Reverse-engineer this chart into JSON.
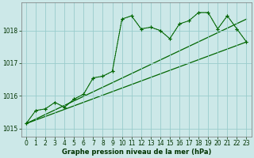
{
  "background_color": "#cce8e8",
  "grid_color": "#99cccc",
  "line_color": "#006600",
  "marker_color": "#006600",
  "text_color": "#003300",
  "xlabel": "Graphe pression niveau de la mer (hPa)",
  "xlim": [
    -0.5,
    23.5
  ],
  "ylim": [
    1014.75,
    1018.85
  ],
  "yticks": [
    1015,
    1016,
    1017,
    1018
  ],
  "xticks": [
    0,
    1,
    2,
    3,
    4,
    5,
    6,
    7,
    8,
    9,
    10,
    11,
    12,
    13,
    14,
    15,
    16,
    17,
    18,
    19,
    20,
    21,
    22,
    23
  ],
  "series_dotted": {
    "x": [
      0,
      1,
      2,
      3,
      4,
      5,
      6,
      7,
      8,
      9,
      10,
      11,
      12,
      13,
      14,
      15,
      16,
      17,
      18,
      19,
      20,
      21,
      22,
      23
    ],
    "y": [
      1015.15,
      1015.55,
      1015.6,
      1015.8,
      1015.65,
      1015.9,
      1016.05,
      1016.55,
      1016.6,
      1016.75,
      1018.35,
      1018.45,
      1018.05,
      1018.1,
      1018.0,
      1017.75,
      1018.2,
      1018.3,
      1018.55,
      1018.55,
      1018.05,
      1018.45,
      1018.05,
      1017.65
    ]
  },
  "series_solid": {
    "x": [
      0,
      1,
      2,
      3,
      4,
      5,
      6,
      7,
      8,
      9,
      10,
      11,
      12,
      13,
      14,
      15,
      16,
      17,
      18,
      19,
      20,
      21,
      22,
      23
    ],
    "y": [
      1015.15,
      1015.55,
      1015.6,
      1015.8,
      1015.65,
      1015.9,
      1016.05,
      1016.55,
      1016.6,
      1016.75,
      1018.35,
      1018.45,
      1018.05,
      1018.1,
      1018.0,
      1017.75,
      1018.2,
      1018.3,
      1018.55,
      1018.55,
      1018.05,
      1018.45,
      1018.05,
      1017.65
    ]
  },
  "trend_line": {
    "x": [
      0,
      23
    ],
    "y": [
      1015.15,
      1017.65
    ]
  },
  "trend_line2": {
    "x": [
      0,
      23
    ],
    "y": [
      1015.15,
      1018.35
    ]
  }
}
